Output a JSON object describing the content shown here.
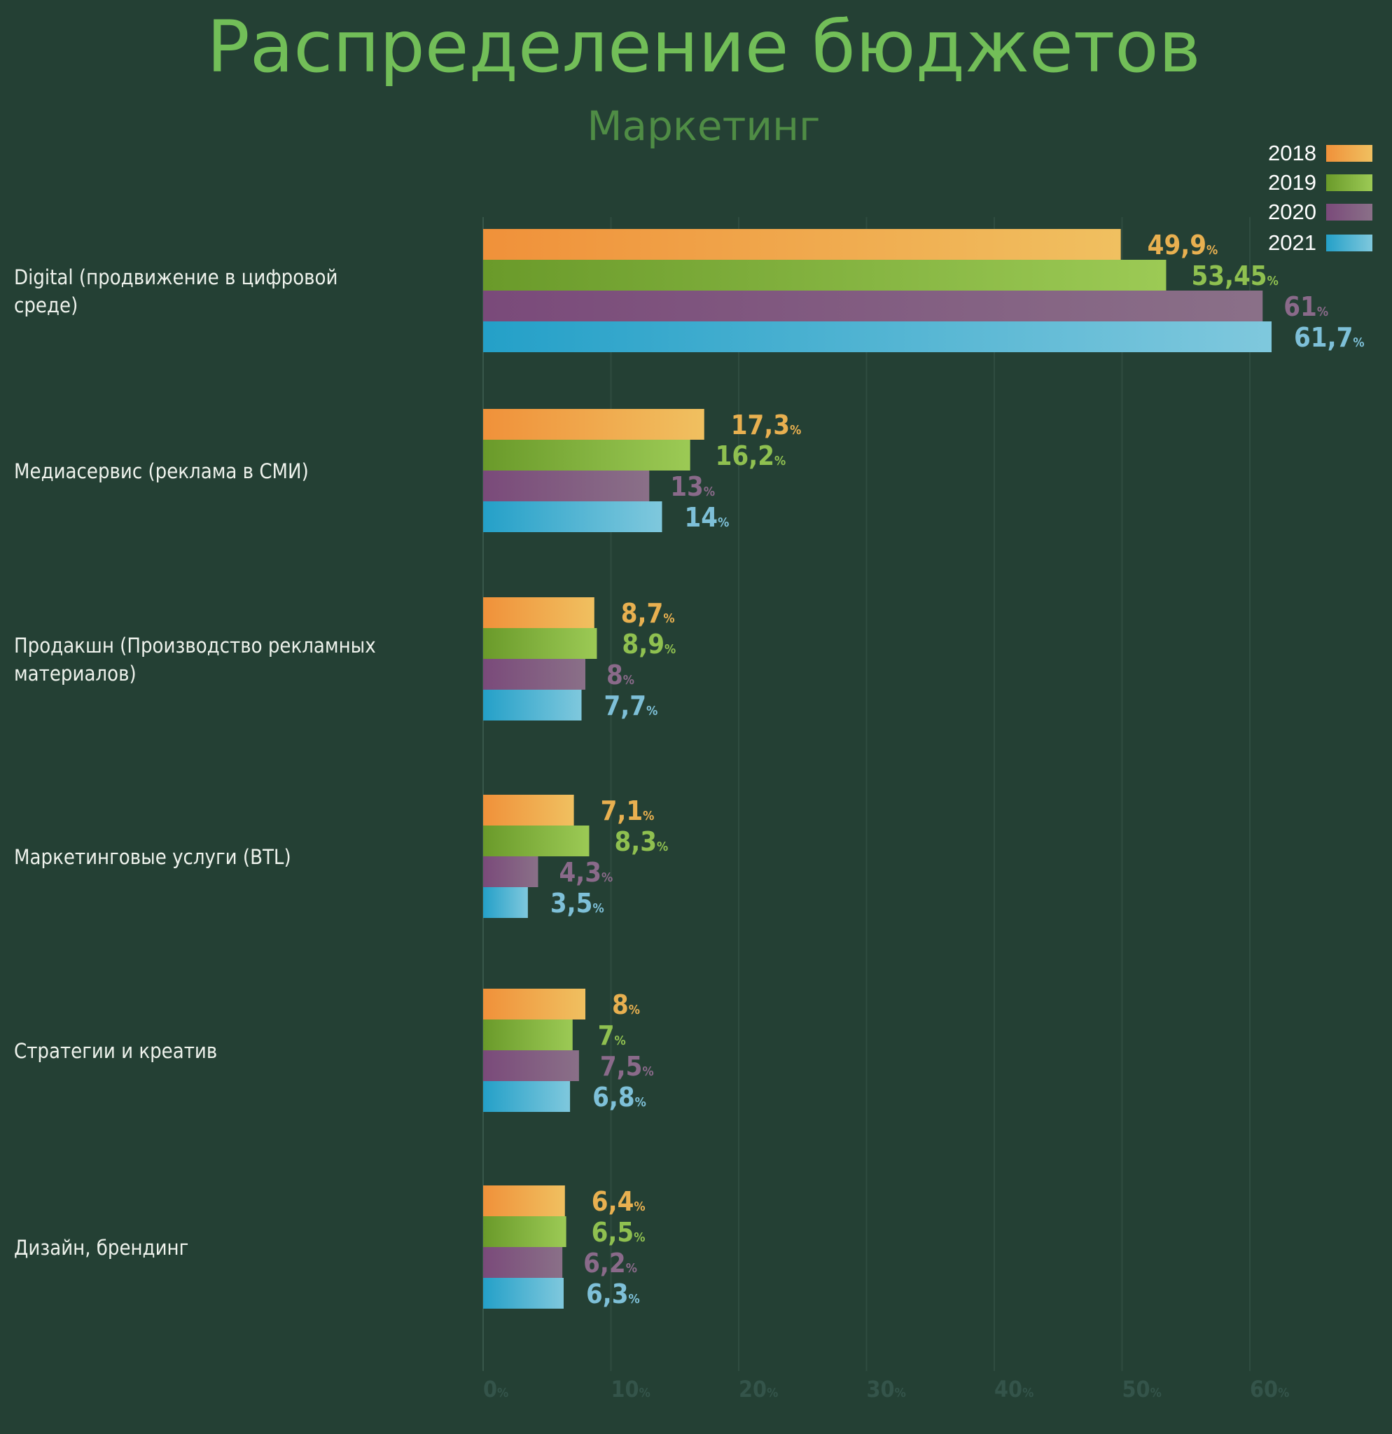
{
  "chart_data": {
    "type": "bar",
    "orientation": "horizontal",
    "title": "Распределение бюджетов",
    "subtitle": "Маркетинг",
    "xlabel": "",
    "ylabel": "",
    "xlim": [
      0,
      60
    ],
    "x_ticks": [
      {
        "value": 0,
        "label": "0%"
      },
      {
        "value": 10,
        "label": "10%"
      },
      {
        "value": 20,
        "label": "20%"
      },
      {
        "value": 30,
        "label": "30%"
      },
      {
        "value": 40,
        "label": "40%"
      },
      {
        "value": 50,
        "label": "50%"
      },
      {
        "value": 60,
        "label": "60%"
      }
    ],
    "grid": true,
    "legend_position": "top-right",
    "categories": [
      [
        "Digital (продвижение в цифровой",
        "среде)"
      ],
      [
        "Медиасервис (реклама в СМИ)"
      ],
      [
        "Продакшн (Производство рекламных",
        "материалов)"
      ],
      [
        "Маркетинговые услуги (BTL)"
      ],
      [
        "Стратегии и креатив"
      ],
      [
        "Дизайн, брендинг"
      ]
    ],
    "series": [
      {
        "name": "2018",
        "color": "#f0913a",
        "color_light": "#f0c060",
        "label_color": "#e8b050",
        "values": [
          49.9,
          17.3,
          8.7,
          7.1,
          8.0,
          6.4
        ],
        "labels": [
          "49,9",
          "17,3",
          "8,7",
          "7,1",
          "8",
          "6,4"
        ]
      },
      {
        "name": "2019",
        "color": "#6a9a2a",
        "color_light": "#9cca55",
        "label_color": "#8fc050",
        "values": [
          53.45,
          16.2,
          8.9,
          8.3,
          7.0,
          6.5
        ],
        "labels": [
          "53,45",
          "16,2",
          "8,9",
          "8,3",
          "7",
          "6,5"
        ]
      },
      {
        "name": "2020",
        "color": "#7a4a7a",
        "color_light": "#8a7088",
        "label_color": "#8a6a8a",
        "values": [
          61,
          13,
          8,
          4.3,
          7.5,
          6.2
        ],
        "labels": [
          "61",
          "13",
          "8",
          "4,3",
          "7,5",
          "6,2"
        ]
      },
      {
        "name": "2021",
        "color": "#24a0c8",
        "color_light": "#7fc8dd",
        "label_color": "#7ec0d8",
        "values": [
          61.7,
          14,
          7.7,
          3.5,
          6.8,
          6.3
        ],
        "labels": [
          "61,7",
          "14",
          "7,7",
          "3,5",
          "6,8",
          "6,3"
        ]
      }
    ],
    "unit_suffix": "%"
  }
}
